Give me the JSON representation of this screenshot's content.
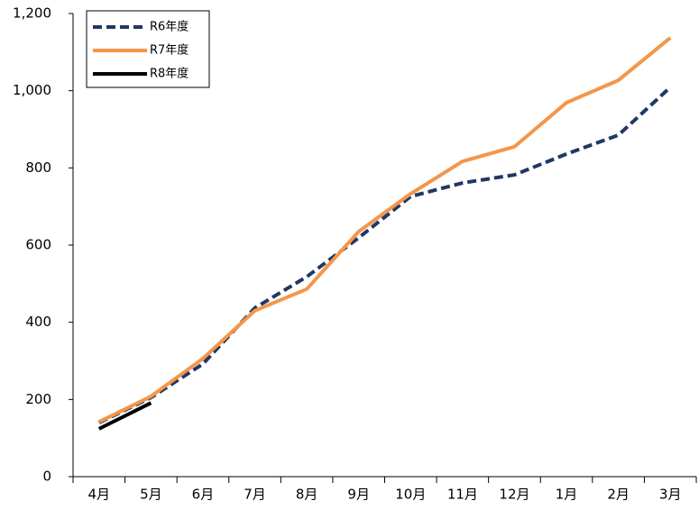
{
  "chart_data": {
    "type": "line",
    "categories": [
      "4月",
      "5月",
      "6月",
      "7月",
      "8月",
      "9月",
      "10月",
      "11月",
      "12月",
      "1月",
      "2月",
      "3月"
    ],
    "series": [
      {
        "name": "R6年度",
        "color": "#1f3864",
        "dashed": true,
        "values": [
          140,
          205,
          292,
          437,
          518,
          619,
          726,
          761,
          782,
          836,
          885,
          1009
        ]
      },
      {
        "name": "R7年度",
        "color": "#f4964a",
        "dashed": false,
        "values": [
          142,
          208,
          306,
          430,
          486,
          635,
          733,
          817,
          855,
          969,
          1027,
          1137
        ]
      },
      {
        "name": "R8年度",
        "color": "#000000",
        "dashed": false,
        "values": [
          124,
          191,
          null,
          null,
          null,
          null,
          null,
          null,
          null,
          null,
          null,
          null
        ]
      }
    ],
    "ylim": [
      0,
      1200
    ],
    "yticks": [
      0,
      200,
      400,
      600,
      800,
      {
        "value": 1000,
        "label": "1,000"
      },
      {
        "value": 1200,
        "label": "1,200"
      }
    ],
    "grid": false,
    "legend": "upper left"
  }
}
